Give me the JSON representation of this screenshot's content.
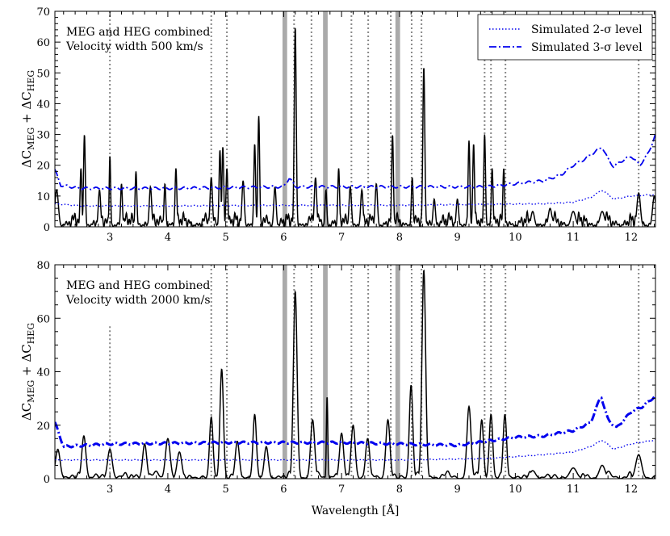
{
  "chart_data": {
    "type": "line",
    "x_label": "Wavelength [Å]",
    "y_label": "ΔC_MEG + ΔC_HEG",
    "y_label_parts": {
      "delta": "ΔC",
      "sub1": "MEG",
      "plus": " + ΔC",
      "sub2": "HEG"
    },
    "x_range": [
      2.05,
      12.42
    ],
    "x_ticks": [
      3,
      4,
      5,
      6,
      7,
      8,
      9,
      10,
      11,
      12
    ],
    "x_tick_labels": [
      "3",
      "4",
      "5",
      "6",
      "7",
      "8",
      "9",
      "10",
      "11",
      "12"
    ],
    "dotted_lines": [
      3.0,
      4.75,
      5.02,
      6.18,
      6.48,
      7.17,
      7.46,
      7.85,
      8.21,
      8.38,
      9.47,
      9.58,
      9.83,
      12.13
    ],
    "shaded_bands": [
      [
        5.98,
        6.06
      ],
      [
        6.68,
        6.76
      ],
      [
        7.93,
        8.01
      ]
    ],
    "legend": [
      {
        "label": "Simulated 2-σ level",
        "style": "dotted"
      },
      {
        "label": "Simulated 3-σ level",
        "style": "dashdot"
      }
    ],
    "colors": {
      "data": "#000000",
      "sim": "#0000ee",
      "grid": "#888888",
      "band": "#aaaaaa"
    },
    "panels": [
      {
        "name": "top",
        "annotation": [
          "MEG and HEG combined",
          "Velocity width 500 km/s"
        ],
        "y_range": [
          0,
          70
        ],
        "y_ticks": [
          0,
          10,
          20,
          30,
          40,
          50,
          60,
          70
        ],
        "y_tick_labels": [
          "0",
          "10",
          "20",
          "30",
          "40",
          "50",
          "60",
          "70"
        ],
        "baseline": 5,
        "osc_width": 0.025,
        "peaks": [
          {
            "x": 2.08,
            "y": 12,
            "w": 0.03
          },
          {
            "x": 2.5,
            "y": 19,
            "w": 0.015
          },
          {
            "x": 2.56,
            "y": 30,
            "w": 0.015
          },
          {
            "x": 2.82,
            "y": 12,
            "w": 0.02
          },
          {
            "x": 3.0,
            "y": 23,
            "w": 0.012
          },
          {
            "x": 3.2,
            "y": 14,
            "w": 0.015
          },
          {
            "x": 3.45,
            "y": 18,
            "w": 0.015
          },
          {
            "x": 3.7,
            "y": 13,
            "w": 0.02
          },
          {
            "x": 3.95,
            "y": 14,
            "w": 0.015
          },
          {
            "x": 4.14,
            "y": 19,
            "w": 0.015
          },
          {
            "x": 4.75,
            "y": 16,
            "w": 0.02
          },
          {
            "x": 4.9,
            "y": 25,
            "w": 0.015
          },
          {
            "x": 4.95,
            "y": 26,
            "w": 0.015
          },
          {
            "x": 5.02,
            "y": 19,
            "w": 0.015
          },
          {
            "x": 5.3,
            "y": 15,
            "w": 0.02
          },
          {
            "x": 5.5,
            "y": 27,
            "w": 0.015
          },
          {
            "x": 5.57,
            "y": 36,
            "w": 0.015
          },
          {
            "x": 5.85,
            "y": 13,
            "w": 0.02
          },
          {
            "x": 6.2,
            "y": 65,
            "w": 0.017
          },
          {
            "x": 6.55,
            "y": 16,
            "w": 0.02
          },
          {
            "x": 6.73,
            "y": 12,
            "w": 0.015
          },
          {
            "x": 6.95,
            "y": 19,
            "w": 0.015
          },
          {
            "x": 7.15,
            "y": 13,
            "w": 0.02
          },
          {
            "x": 7.35,
            "y": 12,
            "w": 0.02
          },
          {
            "x": 7.6,
            "y": 14,
            "w": 0.02
          },
          {
            "x": 7.88,
            "y": 30,
            "w": 0.015
          },
          {
            "x": 8.22,
            "y": 16,
            "w": 0.015
          },
          {
            "x": 8.42,
            "y": 52,
            "w": 0.017
          },
          {
            "x": 8.6,
            "y": 9,
            "w": 0.02
          },
          {
            "x": 9.0,
            "y": 9,
            "w": 0.02
          },
          {
            "x": 9.2,
            "y": 28,
            "w": 0.015
          },
          {
            "x": 9.28,
            "y": 27,
            "w": 0.015
          },
          {
            "x": 9.47,
            "y": 30,
            "w": 0.015
          },
          {
            "x": 9.6,
            "y": 19,
            "w": 0.015
          },
          {
            "x": 9.8,
            "y": 19,
            "w": 0.015
          },
          {
            "x": 10.3,
            "y": 5,
            "w": 0.03
          },
          {
            "x": 10.6,
            "y": 6,
            "w": 0.03
          },
          {
            "x": 11.0,
            "y": 5,
            "w": 0.04
          },
          {
            "x": 11.5,
            "y": 5,
            "w": 0.04
          },
          {
            "x": 12.13,
            "y": 11,
            "w": 0.03
          },
          {
            "x": 12.4,
            "y": 10,
            "w": 0.03
          }
        ],
        "sigma2": [
          [
            2.05,
            7.5
          ],
          [
            2.5,
            6.8
          ],
          [
            4.0,
            6.8
          ],
          [
            6.0,
            7.0
          ],
          [
            8.0,
            7.0
          ],
          [
            9.5,
            7.3
          ],
          [
            10.5,
            7.5
          ],
          [
            11.0,
            8.0
          ],
          [
            11.3,
            9.5
          ],
          [
            11.5,
            12.0
          ],
          [
            11.7,
            9.0
          ],
          [
            12.0,
            10.0
          ],
          [
            12.42,
            10.5
          ]
        ],
        "sigma3": [
          [
            2.05,
            18.5
          ],
          [
            2.15,
            13.5
          ],
          [
            2.5,
            12.5
          ],
          [
            4.0,
            12.5
          ],
          [
            6.0,
            13.0
          ],
          [
            6.1,
            16.0
          ],
          [
            6.2,
            13.0
          ],
          [
            8.0,
            13.0
          ],
          [
            9.5,
            13.0
          ],
          [
            10.0,
            14.0
          ],
          [
            10.5,
            15.0
          ],
          [
            10.8,
            17.0
          ],
          [
            11.0,
            20.0
          ],
          [
            11.2,
            22.0
          ],
          [
            11.5,
            26.0
          ],
          [
            11.6,
            22.0
          ],
          [
            11.7,
            19.5
          ],
          [
            11.8,
            21.0
          ],
          [
            12.0,
            23.0
          ],
          [
            12.15,
            20.0
          ],
          [
            12.3,
            24.0
          ],
          [
            12.42,
            30.0
          ]
        ]
      },
      {
        "name": "bottom",
        "annotation": [
          "MEG and HEG combined",
          "Velocity width 2000 km/s"
        ],
        "y_range": [
          0,
          80
        ],
        "y_ticks": [
          0,
          20,
          40,
          60,
          80
        ],
        "y_tick_labels": [
          "0",
          "20",
          "40",
          "60",
          "80"
        ],
        "baseline": 3,
        "osc_width": 0.06,
        "peaks": [
          {
            "x": 2.1,
            "y": 11,
            "w": 0.04
          },
          {
            "x": 2.55,
            "y": 16,
            "w": 0.035
          },
          {
            "x": 3.0,
            "y": 11,
            "w": 0.04
          },
          {
            "x": 3.6,
            "y": 13,
            "w": 0.035
          },
          {
            "x": 4.0,
            "y": 15,
            "w": 0.04
          },
          {
            "x": 4.2,
            "y": 10,
            "w": 0.04
          },
          {
            "x": 4.75,
            "y": 23,
            "w": 0.03
          },
          {
            "x": 4.93,
            "y": 41,
            "w": 0.03
          },
          {
            "x": 5.2,
            "y": 14,
            "w": 0.035
          },
          {
            "x": 5.5,
            "y": 24,
            "w": 0.03
          },
          {
            "x": 5.7,
            "y": 12,
            "w": 0.035
          },
          {
            "x": 6.2,
            "y": 70,
            "w": 0.032
          },
          {
            "x": 6.5,
            "y": 22,
            "w": 0.035
          },
          {
            "x": 6.75,
            "y": 31,
            "w": 0.012
          },
          {
            "x": 7.0,
            "y": 17,
            "w": 0.035
          },
          {
            "x": 7.2,
            "y": 20,
            "w": 0.035
          },
          {
            "x": 7.45,
            "y": 15,
            "w": 0.035
          },
          {
            "x": 7.8,
            "y": 22,
            "w": 0.035
          },
          {
            "x": 8.2,
            "y": 35,
            "w": 0.03
          },
          {
            "x": 8.42,
            "y": 78,
            "w": 0.032
          },
          {
            "x": 9.2,
            "y": 27,
            "w": 0.035
          },
          {
            "x": 9.42,
            "y": 22,
            "w": 0.03
          },
          {
            "x": 9.58,
            "y": 24,
            "w": 0.03
          },
          {
            "x": 9.82,
            "y": 24,
            "w": 0.03
          },
          {
            "x": 10.3,
            "y": 3,
            "w": 0.05
          },
          {
            "x": 11.0,
            "y": 4,
            "w": 0.06
          },
          {
            "x": 11.5,
            "y": 5,
            "w": 0.05
          },
          {
            "x": 12.13,
            "y": 9,
            "w": 0.05
          }
        ],
        "sigma2": [
          [
            2.05,
            7.0
          ],
          [
            3.0,
            7.0
          ],
          [
            5.0,
            7.0
          ],
          [
            8.0,
            7.0
          ],
          [
            9.5,
            7.5
          ],
          [
            10.5,
            9.0
          ],
          [
            11.0,
            10.0
          ],
          [
            11.3,
            12.0
          ],
          [
            11.5,
            14.5
          ],
          [
            11.7,
            11.0
          ],
          [
            12.0,
            13.0
          ],
          [
            12.42,
            14.5
          ]
        ],
        "sigma3": [
          [
            2.05,
            21.0
          ],
          [
            2.2,
            12.0
          ],
          [
            3.0,
            13.0
          ],
          [
            5.0,
            13.5
          ],
          [
            6.0,
            13.5
          ],
          [
            7.0,
            13.5
          ],
          [
            8.0,
            13.0
          ],
          [
            9.0,
            12.5
          ],
          [
            9.5,
            14.0
          ],
          [
            10.0,
            15.5
          ],
          [
            10.5,
            16.0
          ],
          [
            11.0,
            18.0
          ],
          [
            11.3,
            21.0
          ],
          [
            11.48,
            31.0
          ],
          [
            11.6,
            22.0
          ],
          [
            11.75,
            19.0
          ],
          [
            12.0,
            25.0
          ],
          [
            12.2,
            27.0
          ],
          [
            12.42,
            31.0
          ]
        ]
      }
    ]
  }
}
